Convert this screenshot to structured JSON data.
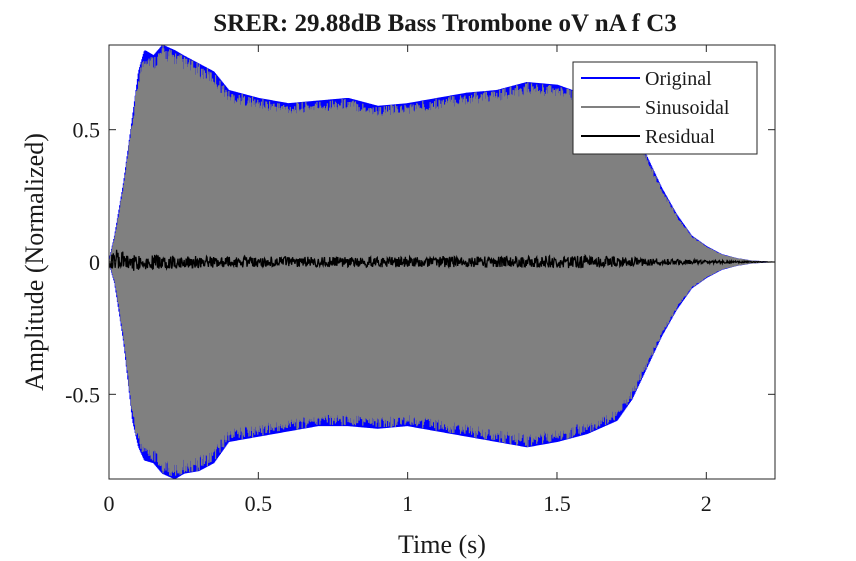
{
  "chart_data": {
    "type": "line",
    "title": "SRER: 29.88dB Bass Trombone oV nA f C3",
    "xlabel": "Time (s)",
    "ylabel": "Amplitude (Normalized)",
    "xlim": [
      0,
      2.23
    ],
    "ylim": [
      -0.82,
      0.82
    ],
    "xticks": [
      0,
      0.5,
      1,
      1.5,
      2
    ],
    "xtick_labels": [
      "0",
      "0.5",
      "1",
      "1.5",
      "2"
    ],
    "yticks": [
      0.5,
      0,
      -0.5
    ],
    "ytick_labels": [
      "0.5",
      "0",
      "-0.5"
    ],
    "grid": false,
    "legend_position": "top-right",
    "series": [
      {
        "name": "Original",
        "color": "#0000ff",
        "envelope": {
          "t": [
            0,
            0.02,
            0.05,
            0.08,
            0.1,
            0.12,
            0.15,
            0.18,
            0.22,
            0.25,
            0.3,
            0.35,
            0.4,
            0.5,
            0.6,
            0.7,
            0.8,
            0.9,
            1.0,
            1.1,
            1.2,
            1.3,
            1.4,
            1.5,
            1.6,
            1.7,
            1.75,
            1.8,
            1.85,
            1.9,
            1.95,
            2.0,
            2.05,
            2.1,
            2.15,
            2.23
          ],
          "upper": [
            0.0,
            0.1,
            0.3,
            0.55,
            0.72,
            0.8,
            0.78,
            0.82,
            0.8,
            0.78,
            0.75,
            0.72,
            0.65,
            0.62,
            0.6,
            0.61,
            0.62,
            0.59,
            0.6,
            0.62,
            0.64,
            0.65,
            0.68,
            0.67,
            0.63,
            0.6,
            0.55,
            0.4,
            0.28,
            0.18,
            0.1,
            0.06,
            0.03,
            0.015,
            0.006,
            0.0
          ],
          "lower": [
            0.0,
            -0.08,
            -0.3,
            -0.6,
            -0.7,
            -0.75,
            -0.76,
            -0.8,
            -0.82,
            -0.8,
            -0.79,
            -0.76,
            -0.68,
            -0.66,
            -0.64,
            -0.62,
            -0.62,
            -0.63,
            -0.62,
            -0.64,
            -0.66,
            -0.68,
            -0.7,
            -0.68,
            -0.65,
            -0.6,
            -0.52,
            -0.4,
            -0.28,
            -0.18,
            -0.1,
            -0.06,
            -0.03,
            -0.015,
            -0.006,
            0.0
          ]
        }
      },
      {
        "name": "Sinusoidal",
        "color": "#808080"
      },
      {
        "name": "Residual",
        "color": "#000000",
        "envelope": {
          "t": [
            0,
            0.02,
            0.05,
            0.1,
            0.2,
            0.4,
            0.8,
            1.2,
            1.6,
            1.8,
            1.95,
            2.1,
            2.23
          ],
          "upper": [
            0.01,
            0.05,
            0.04,
            0.03,
            0.025,
            0.02,
            0.02,
            0.02,
            0.025,
            0.015,
            0.008,
            0.004,
            0.0
          ],
          "lower": [
            -0.01,
            -0.05,
            -0.04,
            -0.03,
            -0.025,
            -0.02,
            -0.02,
            -0.02,
            -0.025,
            -0.015,
            -0.008,
            -0.004,
            0.0
          ]
        }
      }
    ]
  }
}
